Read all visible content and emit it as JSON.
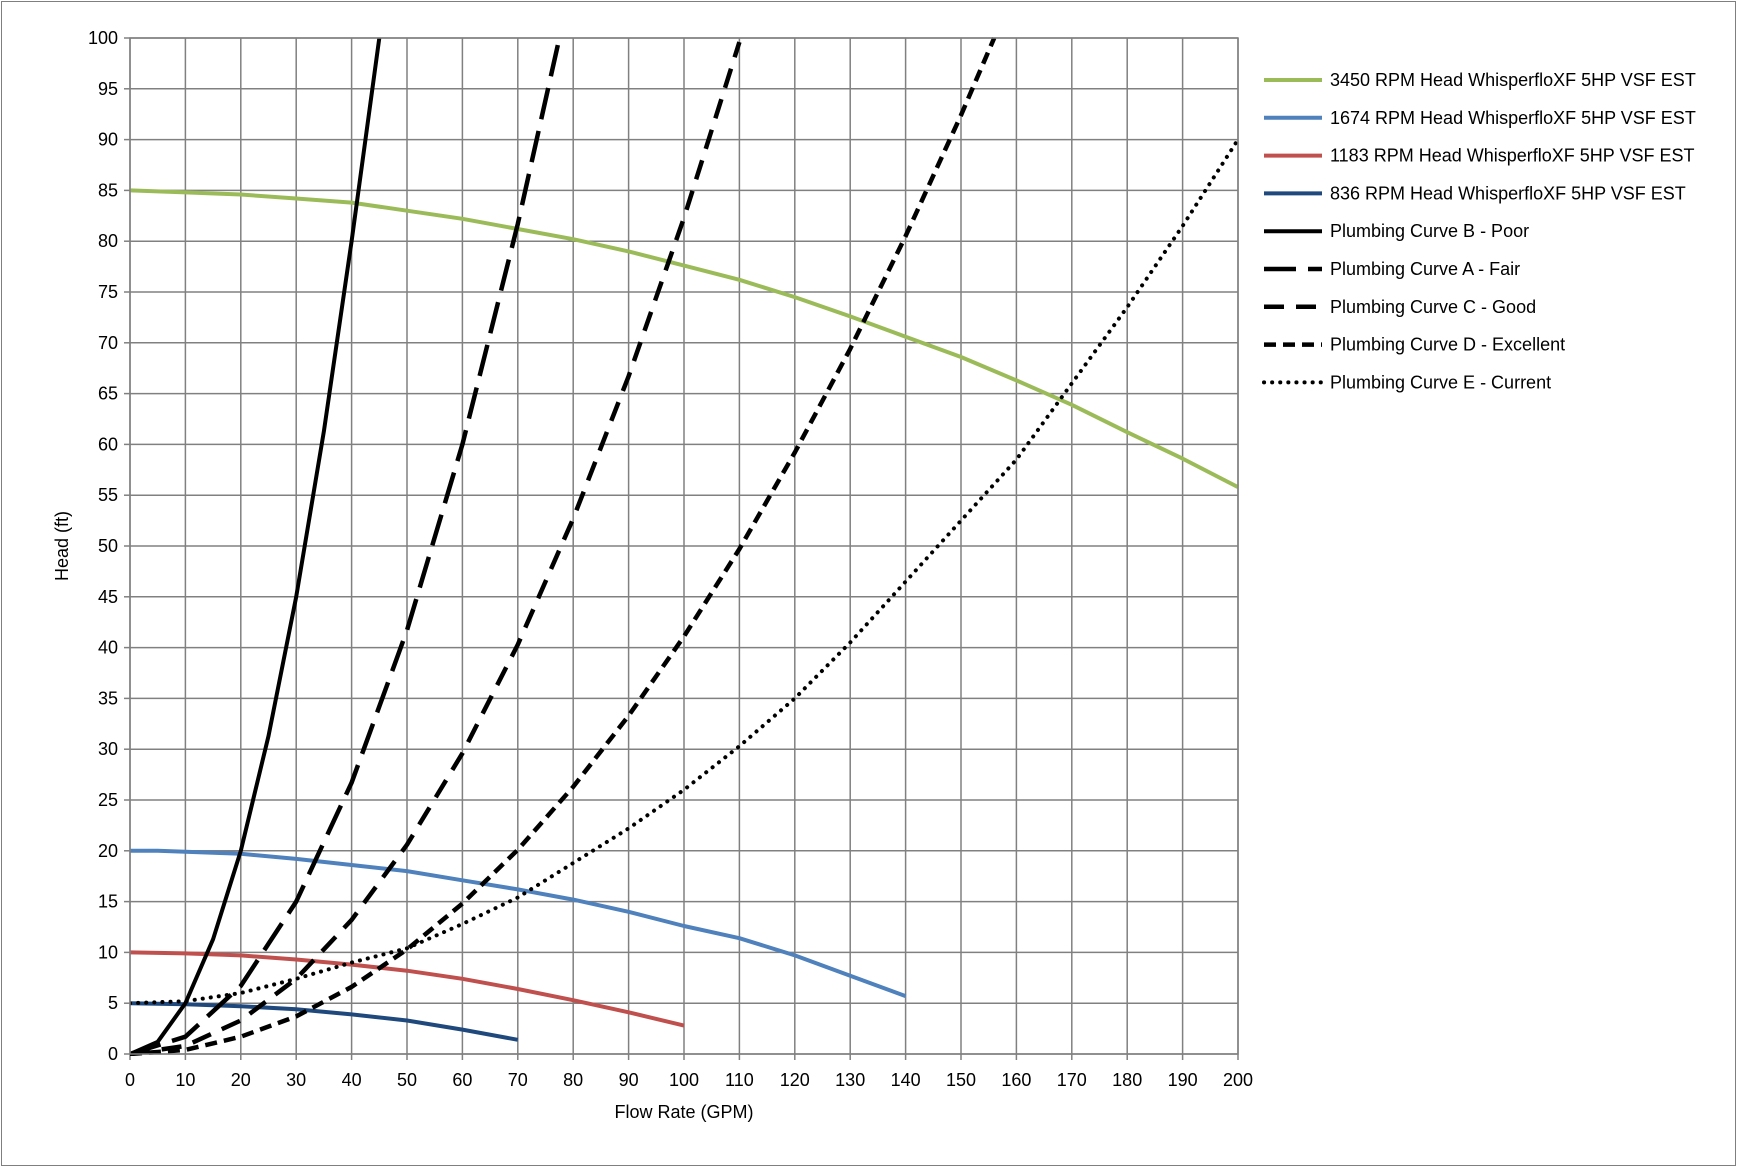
{
  "chart_data": {
    "type": "line",
    "title": "",
    "xlabel": "Flow Rate (GPM)",
    "ylabel": "Head (ft)",
    "xlim": [
      0,
      200
    ],
    "ylim": [
      0,
      100
    ],
    "xticks": [
      0,
      10,
      20,
      30,
      40,
      50,
      60,
      70,
      80,
      90,
      100,
      110,
      120,
      130,
      140,
      150,
      160,
      170,
      180,
      190,
      200
    ],
    "yticks": [
      0,
      5,
      10,
      15,
      20,
      25,
      30,
      35,
      40,
      45,
      50,
      55,
      60,
      65,
      70,
      75,
      80,
      85,
      90,
      95,
      100
    ],
    "grid": true,
    "legend_position": "right",
    "series": [
      {
        "name": "3450 RPM Head WhisperfloXF 5HP VSF EST",
        "color": "#9BBB59",
        "dash": "solid",
        "points": [
          [
            0,
            85
          ],
          [
            10,
            84.8
          ],
          [
            20,
            84.6
          ],
          [
            30,
            84.2
          ],
          [
            40,
            83.8
          ],
          [
            50,
            83
          ],
          [
            60,
            82.2
          ],
          [
            70,
            81.2
          ],
          [
            80,
            80.2
          ],
          [
            90,
            79
          ],
          [
            100,
            77.6
          ],
          [
            110,
            76.2
          ],
          [
            120,
            74.5
          ],
          [
            130,
            72.6
          ],
          [
            140,
            70.6
          ],
          [
            150,
            68.6
          ],
          [
            160,
            66.3
          ],
          [
            170,
            63.9
          ],
          [
            180,
            61.2
          ],
          [
            190,
            58.6
          ],
          [
            200,
            55.8
          ]
        ]
      },
      {
        "name": "1674 RPM Head WhisperfloXF 5HP VSF EST",
        "color": "#4F81BD",
        "dash": "solid",
        "points": [
          [
            0,
            20
          ],
          [
            5,
            20
          ],
          [
            10,
            19.9
          ],
          [
            20,
            19.7
          ],
          [
            30,
            19.2
          ],
          [
            40,
            18.6
          ],
          [
            50,
            18
          ],
          [
            60,
            17.1
          ],
          [
            70,
            16.2
          ],
          [
            80,
            15.2
          ],
          [
            90,
            14
          ],
          [
            100,
            12.6
          ],
          [
            110,
            11.4
          ],
          [
            120,
            9.7
          ],
          [
            130,
            7.7
          ],
          [
            140,
            5.7
          ]
        ]
      },
      {
        "name": "1183 RPM Head WhisperfloXF 5HP VSF EST",
        "color": "#C0504D",
        "dash": "solid",
        "points": [
          [
            0,
            10
          ],
          [
            10,
            9.9
          ],
          [
            20,
            9.7
          ],
          [
            30,
            9.3
          ],
          [
            40,
            8.8
          ],
          [
            50,
            8.2
          ],
          [
            60,
            7.4
          ],
          [
            70,
            6.4
          ],
          [
            80,
            5.3
          ],
          [
            90,
            4.1
          ],
          [
            100,
            2.8
          ]
        ]
      },
      {
        "name": "836 RPM Head WhisperfloXF 5HP VSF EST",
        "color": "#1F497D",
        "dash": "solid",
        "points": [
          [
            0,
            5
          ],
          [
            10,
            4.9
          ],
          [
            20,
            4.7
          ],
          [
            30,
            4.4
          ],
          [
            40,
            3.9
          ],
          [
            50,
            3.3
          ],
          [
            60,
            2.4
          ],
          [
            70,
            1.4
          ]
        ]
      },
      {
        "name": "Plumbing Curve B - Poor",
        "color": "#000000",
        "dash": "solid",
        "points": [
          [
            0,
            0
          ],
          [
            5,
            1.2
          ],
          [
            10,
            5
          ],
          [
            15,
            11.3
          ],
          [
            20,
            20
          ],
          [
            25,
            31.3
          ],
          [
            30,
            45
          ],
          [
            35,
            61.3
          ],
          [
            40,
            80
          ],
          [
            45,
            100
          ]
        ]
      },
      {
        "name": "Plumbing Curve A - Fair",
        "color": "#000000",
        "dash": "longdash",
        "points": [
          [
            0,
            0
          ],
          [
            10,
            1.7
          ],
          [
            20,
            6.7
          ],
          [
            30,
            15
          ],
          [
            40,
            26.7
          ],
          [
            50,
            41.7
          ],
          [
            60,
            60
          ],
          [
            70,
            81.7
          ],
          [
            77.5,
            100
          ]
        ]
      },
      {
        "name": "Plumbing Curve C - Good",
        "color": "#000000",
        "dash": "dash",
        "points": [
          [
            0,
            0
          ],
          [
            10,
            0.8
          ],
          [
            20,
            3.3
          ],
          [
            30,
            7.4
          ],
          [
            40,
            13.2
          ],
          [
            50,
            20.6
          ],
          [
            60,
            29.6
          ],
          [
            70,
            40.3
          ],
          [
            80,
            52.7
          ],
          [
            90,
            66.7
          ],
          [
            100,
            82.3
          ],
          [
            110,
            99.6
          ]
        ]
      },
      {
        "name": "Plumbing Curve D - Excellent",
        "color": "#000000",
        "dash": "shortdash",
        "points": [
          [
            0,
            0
          ],
          [
            10,
            0.4
          ],
          [
            20,
            1.7
          ],
          [
            30,
            3.7
          ],
          [
            40,
            6.6
          ],
          [
            50,
            10.3
          ],
          [
            60,
            14.8
          ],
          [
            70,
            20.1
          ],
          [
            80,
            26.3
          ],
          [
            90,
            33.3
          ],
          [
            100,
            41.1
          ],
          [
            110,
            49.7
          ],
          [
            120,
            59.2
          ],
          [
            130,
            69.4
          ],
          [
            140,
            80.5
          ],
          [
            150,
            92.4
          ],
          [
            156,
            100
          ]
        ]
      },
      {
        "name": "Plumbing Curve E - Current",
        "color": "#000000",
        "dash": "dot",
        "points": [
          [
            0,
            5
          ],
          [
            10,
            5.2
          ],
          [
            20,
            6
          ],
          [
            30,
            7.4
          ],
          [
            40,
            9
          ],
          [
            50,
            10.4
          ],
          [
            60,
            12.8
          ],
          [
            70,
            15.4
          ],
          [
            80,
            18.8
          ],
          [
            90,
            22.2
          ],
          [
            100,
            26
          ],
          [
            110,
            30.3
          ],
          [
            120,
            35
          ],
          [
            130,
            40.5
          ],
          [
            140,
            46.5
          ],
          [
            150,
            52.5
          ],
          [
            160,
            58.5
          ],
          [
            170,
            66
          ],
          [
            180,
            73.5
          ],
          [
            190,
            81.5
          ],
          [
            200,
            90
          ]
        ]
      }
    ]
  }
}
